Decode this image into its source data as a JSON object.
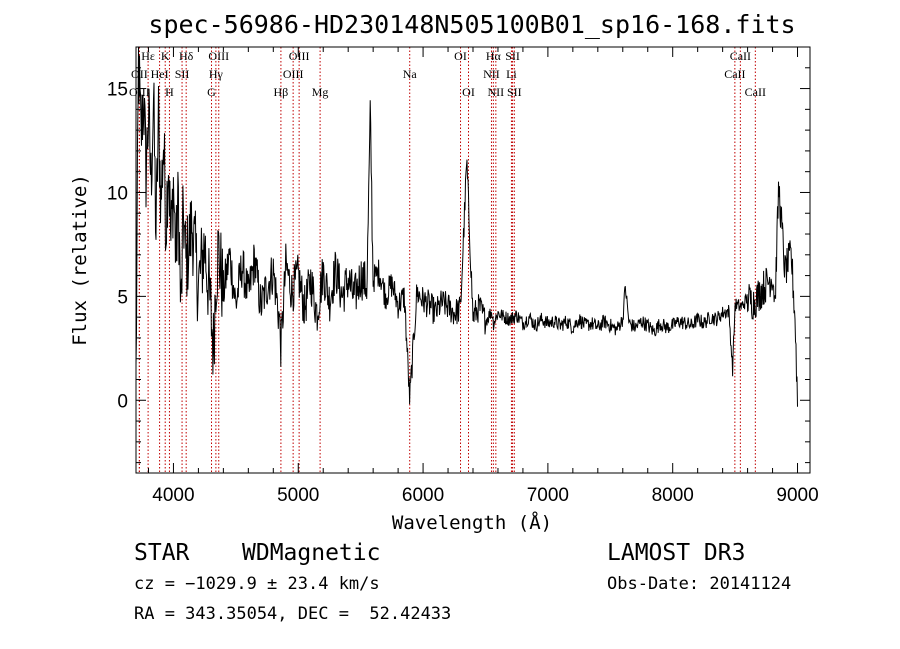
{
  "chart_data": {
    "type": "line",
    "title": "spec-56986-HD230148N505100B01_sp16-168.fits",
    "xlabel": "Wavelength (Å)",
    "ylabel": "Flux (relative)",
    "xlim": [
      3700,
      9100
    ],
    "ylim": [
      -3.5,
      17
    ],
    "xticks": [
      4000,
      5000,
      6000,
      7000,
      8000,
      9000
    ],
    "yticks": [
      0,
      5,
      10,
      15
    ],
    "grid": false,
    "series": [
      {
        "name": "spectrum",
        "x": [
          3700,
          3720,
          3740,
          3760,
          3780,
          3800,
          3820,
          3840,
          3860,
          3880,
          3900,
          3920,
          3940,
          3960,
          3980,
          4000,
          4020,
          4040,
          4060,
          4080,
          4100,
          4150,
          4200,
          4250,
          4300,
          4320,
          4340,
          4360,
          4400,
          4450,
          4500,
          4550,
          4600,
          4650,
          4700,
          4750,
          4800,
          4850,
          4861,
          4900,
          4950,
          5000,
          5050,
          5100,
          5150,
          5200,
          5250,
          5300,
          5350,
          5400,
          5450,
          5500,
          5550,
          5577,
          5600,
          5650,
          5700,
          5750,
          5800,
          5850,
          5893,
          5950,
          6000,
          6050,
          6100,
          6150,
          6200,
          6250,
          6300,
          6350,
          6400,
          6450,
          6500,
          6550,
          6563,
          6600,
          6650,
          6700,
          6750,
          6800,
          6850,
          6900,
          6950,
          7000,
          7050,
          7100,
          7150,
          7200,
          7250,
          7300,
          7350,
          7400,
          7450,
          7500,
          7550,
          7600,
          7620,
          7650,
          7700,
          7750,
          7800,
          7850,
          7900,
          7950,
          8000,
          8050,
          8100,
          8150,
          8200,
          8250,
          8300,
          8350,
          8400,
          8450,
          8480,
          8500,
          8550,
          8600,
          8650,
          8700,
          8750,
          8800,
          8820,
          8850,
          8900,
          8950,
          8980,
          9000
        ],
        "y": [
          1.0,
          16.5,
          12.5,
          14.8,
          11.0,
          13.8,
          10.5,
          14.5,
          8.0,
          13.6,
          9.5,
          12.5,
          8.5,
          11.8,
          7.5,
          10.5,
          6.8,
          9.8,
          4.0,
          9.2,
          6.5,
          8.5,
          5.5,
          7.5,
          4.2,
          2.5,
          6.0,
          7.2,
          5.2,
          7.0,
          4.6,
          6.5,
          5.0,
          6.8,
          4.5,
          5.5,
          6.2,
          3.8,
          2.5,
          6.5,
          5.2,
          6.0,
          4.4,
          5.8,
          4.2,
          6.2,
          4.8,
          6.3,
          5.0,
          5.8,
          4.9,
          6.0,
          5.5,
          13.8,
          5.8,
          6.2,
          5.0,
          5.6,
          4.6,
          5.0,
          0.0,
          5.2,
          4.8,
          4.6,
          4.2,
          4.7,
          4.5,
          4.2,
          4.4,
          11.5,
          4.0,
          4.5,
          3.8,
          4.3,
          3.7,
          4.2,
          4.0,
          3.9,
          4.1,
          3.7,
          4.0,
          3.6,
          3.9,
          3.7,
          3.8,
          3.6,
          3.8,
          3.5,
          3.9,
          3.6,
          3.7,
          3.5,
          3.8,
          3.6,
          3.4,
          3.9,
          5.5,
          3.7,
          3.5,
          3.8,
          3.6,
          3.3,
          3.7,
          3.5,
          3.6,
          3.8,
          3.7,
          3.6,
          3.9,
          3.7,
          4.0,
          3.9,
          4.2,
          4.3,
          1.5,
          4.6,
          4.5,
          4.9,
          4.7,
          5.2,
          5.6,
          6.0,
          4.8,
          10.3,
          6.2,
          7.0,
          4.0,
          0.0
        ]
      }
    ],
    "spectral_lines": [
      {
        "label": "Hε",
        "x": 3797,
        "row": 0
      },
      {
        "label": "K",
        "x": 3934,
        "row": 0
      },
      {
        "label": "Hδ",
        "x": 4102,
        "row": 0
      },
      {
        "label": "OIII",
        "x": 4363,
        "row": 0
      },
      {
        "label": "OIII",
        "x": 5007,
        "row": 0
      },
      {
        "label": "OI",
        "x": 6300,
        "row": 0
      },
      {
        "label": "Hα",
        "x": 6563,
        "row": 0
      },
      {
        "label": "SII",
        "x": 6717,
        "row": 0
      },
      {
        "label": "CaII",
        "x": 8542,
        "row": 0
      },
      {
        "label": "OII",
        "x": 3727,
        "row": 1
      },
      {
        "label": "HeI",
        "x": 3889,
        "row": 1
      },
      {
        "label": "SII",
        "x": 4069,
        "row": 1
      },
      {
        "label": "Hγ",
        "x": 4340,
        "row": 1
      },
      {
        "label": "OIII",
        "x": 4959,
        "row": 1
      },
      {
        "label": "Na",
        "x": 5893,
        "row": 1
      },
      {
        "label": "NII",
        "x": 6548,
        "row": 1
      },
      {
        "label": "Li",
        "x": 6708,
        "row": 1
      },
      {
        "label": "CaII",
        "x": 8498,
        "row": 1
      },
      {
        "label": "OIII",
        "x": 3727,
        "row": 2
      },
      {
        "label": "H",
        "x": 3968,
        "row": 2
      },
      {
        "label": "G",
        "x": 4305,
        "row": 2
      },
      {
        "label": "Hβ",
        "x": 4861,
        "row": 2
      },
      {
        "label": "Mg",
        "x": 5175,
        "row": 2
      },
      {
        "label": "OI",
        "x": 6364,
        "row": 2
      },
      {
        "label": "NII",
        "x": 6583,
        "row": 2
      },
      {
        "label": "SII",
        "x": 6731,
        "row": 2
      },
      {
        "label": "CaII",
        "x": 8662,
        "row": 2
      }
    ]
  },
  "info": {
    "object_type": "STAR",
    "subclass": "WDMagnetic",
    "survey": "LAMOST DR3",
    "redshift": "cz = −1029.9 ± 23.4 km/s",
    "obs_date": "Obs-Date: 20141124",
    "coords": "RA = 343.35054, DEC =  52.42433"
  }
}
